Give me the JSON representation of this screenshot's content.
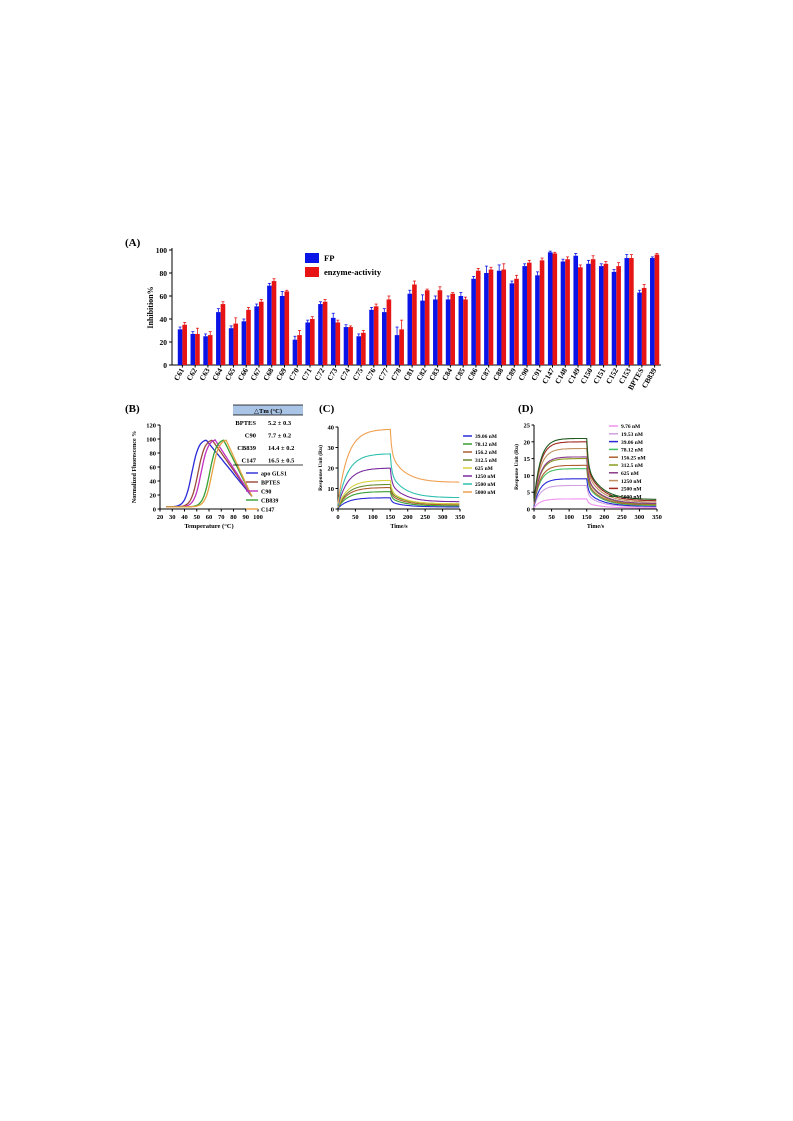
{
  "panels": {
    "A": "(A)",
    "B": "(B)",
    "C": "(C)",
    "D": "(D)"
  },
  "chart_data": [
    {
      "id": "A",
      "type": "bar",
      "ylabel": "Inhibition%",
      "xlabel": "",
      "ylim": [
        0,
        100
      ],
      "yticks": [
        0,
        20,
        40,
        60,
        80,
        100
      ],
      "legend_position": "top-center",
      "categories": [
        "C61",
        "C62",
        "C63",
        "C64",
        "C65",
        "C66",
        "C67",
        "C68",
        "C69",
        "C70",
        "C71",
        "C72",
        "C73",
        "C74",
        "C75",
        "C76",
        "C77",
        "C78",
        "C81",
        "C82",
        "C83",
        "C84",
        "C85",
        "C86",
        "C87",
        "C88",
        "C89",
        "C90",
        "C91",
        "C147",
        "C148",
        "C149",
        "C150",
        "C151",
        "C152",
        "C153",
        "BPTES",
        "CB839"
      ],
      "series": [
        {
          "name": "FP",
          "color": "#0a14e6",
          "values": [
            31,
            27,
            25,
            46,
            32,
            38,
            51,
            69,
            60,
            22,
            37,
            53,
            41,
            33,
            25,
            48,
            46,
            26,
            62,
            56,
            57,
            57,
            60,
            75,
            80,
            82,
            71,
            86,
            78,
            98,
            90,
            95,
            88,
            86,
            81,
            93,
            63,
            93
          ],
          "errors": [
            2,
            2,
            2,
            3,
            2,
            2,
            2,
            2,
            4,
            3,
            2,
            2,
            4,
            2,
            2,
            2,
            3,
            7,
            3,
            5,
            3,
            3,
            3,
            2,
            6,
            5,
            2,
            2,
            3,
            1,
            2,
            2,
            3,
            2,
            2,
            3,
            2,
            1
          ]
        },
        {
          "name": "enzyme-activity",
          "color": "#e61414",
          "values": [
            35,
            27,
            26,
            53,
            36,
            48,
            55,
            73,
            64,
            26,
            40,
            55,
            37,
            33,
            28,
            51,
            57,
            31,
            70,
            65,
            65,
            62,
            57,
            82,
            83,
            83,
            75,
            89,
            91,
            97,
            92,
            85,
            92,
            88,
            86,
            93,
            67,
            96
          ],
          "errors": [
            2,
            5,
            3,
            2,
            5,
            2,
            2,
            2,
            1,
            4,
            2,
            2,
            2,
            1,
            2,
            2,
            3,
            8,
            3,
            1,
            3,
            1,
            2,
            2,
            2,
            5,
            3,
            2,
            2,
            1,
            2,
            2,
            3,
            2,
            3,
            3,
            3,
            1
          ]
        }
      ]
    },
    {
      "id": "B",
      "type": "line",
      "xlabel": "Temperature (°C)",
      "ylabel": "Normalized Fluorescence %",
      "xlim": [
        20,
        100
      ],
      "ylim": [
        0,
        120
      ],
      "xticks": [
        20,
        30,
        40,
        50,
        60,
        70,
        80,
        90,
        100
      ],
      "yticks": [
        0,
        20,
        40,
        60,
        80,
        100,
        120
      ],
      "legend_position": "right",
      "series": [
        {
          "name": "apo GLS1",
          "color": "#2a2ad8",
          "tm": 46
        },
        {
          "name": "BPTES",
          "color": "#9a4a3a",
          "tm": 51
        },
        {
          "name": "C90",
          "color": "#c030c0",
          "tm": 53.5
        },
        {
          "name": "CB839",
          "color": "#35a035",
          "tm": 60.5
        },
        {
          "name": "C147",
          "color": "#e8a040",
          "tm": 62.5
        }
      ],
      "table": {
        "header": "△Tm (°C)",
        "rows": [
          {
            "name": "BPTES",
            "value": "5.2 ± 0.3"
          },
          {
            "name": "C90",
            "value": "7.7 ± 0.2"
          },
          {
            "name": "CB839",
            "value": "14.4 ± 0.2"
          },
          {
            "name": "C147",
            "value": "16.5 ± 0.5"
          }
        ]
      }
    },
    {
      "id": "C",
      "type": "line",
      "xlabel": "Time/s",
      "ylabel": "Response Unit (Ru)",
      "xlim": [
        0,
        350
      ],
      "ylim": [
        0,
        40
      ],
      "xticks": [
        0,
        50,
        100,
        150,
        200,
        250,
        300,
        350
      ],
      "yticks": [
        0,
        10,
        20,
        30,
        40
      ],
      "legend_position": "right",
      "series": [
        {
          "name": "39.06 nM",
          "color": "#2a2ad8",
          "plateau": 5.5,
          "end": 1.0
        },
        {
          "name": "78.12 nM",
          "color": "#35a035",
          "plateau": 8.5,
          "end": 1.5
        },
        {
          "name": "156.2 nM",
          "color": "#b06030",
          "plateau": 10.5,
          "end": 2.0
        },
        {
          "name": "312.5 nM",
          "color": "#6a8a30",
          "plateau": 12.0,
          "end": 2.5
        },
        {
          "name": "625 nM",
          "color": "#d8d040",
          "plateau": 14.0,
          "end": 2.5
        },
        {
          "name": "1250 nM",
          "color": "#7a2aa0",
          "plateau": 20.0,
          "end": 3.5
        },
        {
          "name": "2500 nM",
          "color": "#30c0b0",
          "plateau": 27.0,
          "end": 5.5
        },
        {
          "name": "5000 nM",
          "color": "#f0a050",
          "plateau": 39.0,
          "end": 13.0
        }
      ]
    },
    {
      "id": "D",
      "type": "line",
      "xlabel": "Time/s",
      "ylabel": "Response Unit (Ru)",
      "xlim": [
        0,
        350
      ],
      "ylim": [
        0,
        25
      ],
      "xticks": [
        0,
        50,
        100,
        150,
        200,
        250,
        300,
        350
      ],
      "yticks": [
        0,
        5,
        10,
        15,
        20,
        25
      ],
      "legend_position": "right",
      "series": [
        {
          "name": "9.76 nM",
          "color": "#f090f0",
          "plateau": 3.0,
          "end": 0.3
        },
        {
          "name": "19.53 nM",
          "color": "#d0a0e0",
          "plateau": 7.0,
          "end": 0.6
        },
        {
          "name": "39.06 nM",
          "color": "#2a2ad8",
          "plateau": 9.0,
          "end": 0.8
        },
        {
          "name": "78.12 nM",
          "color": "#40c060",
          "plateau": 12.0,
          "end": 1.0
        },
        {
          "name": "156.25 nM",
          "color": "#b06030",
          "plateau": 13.0,
          "end": 1.2
        },
        {
          "name": "312.5 nM",
          "color": "#8a9a20",
          "plateau": 15.0,
          "end": 1.4
        },
        {
          "name": "625 nM",
          "color": "#8a3a8a",
          "plateau": 15.5,
          "end": 1.6
        },
        {
          "name": "1250 nM",
          "color": "#c09060",
          "plateau": 18.0,
          "end": 2.0
        },
        {
          "name": "2500 nM",
          "color": "#a02a20",
          "plateau": 20.0,
          "end": 2.4
        },
        {
          "name": "5000 nM",
          "color": "#205a20",
          "plateau": 21.0,
          "end": 2.8
        }
      ]
    }
  ]
}
